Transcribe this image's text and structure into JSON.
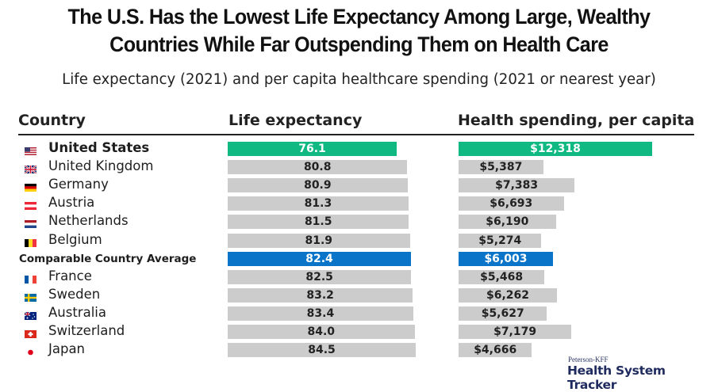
{
  "chart_data": {
    "type": "bar",
    "title": "The U.S. Has the Lowest Life Expectancy Among Large, Wealthy Countries While Far Outspending Them on Health Care",
    "subtitle": "Life expectancy (2021) and per capita healthcare spending (2021 or nearest year)",
    "orientation": "horizontal",
    "column_headers": {
      "country": "Country",
      "life_expectancy": "Life expectancy",
      "spending": "Health spending, per capita"
    },
    "categories": [
      "United States",
      "United Kingdom",
      "Germany",
      "Austria",
      "Netherlands",
      "Belgium",
      "Comparable Country Average",
      "France",
      "Sweden",
      "Australia",
      "Switzerland",
      "Japan"
    ],
    "flags": [
      "us-flag",
      "uk-flag",
      "germany-flag",
      "austria-flag",
      "netherlands-flag",
      "belgium-flag",
      null,
      "france-flag",
      "sweden-flag",
      "australia-flag",
      "switzerland-flag",
      "japan-flag"
    ],
    "series": [
      {
        "name": "Life expectancy",
        "values": [
          76.1,
          80.8,
          80.9,
          81.3,
          81.5,
          81.9,
          82.4,
          82.5,
          83.2,
          83.4,
          84.0,
          84.5
        ],
        "labels": [
          "76.1",
          "80.8",
          "80.9",
          "81.3",
          "81.5",
          "81.9",
          "82.4",
          "82.5",
          "83.2",
          "83.4",
          "84.0",
          "84.5"
        ]
      },
      {
        "name": "Health spending, per capita",
        "values": [
          12318,
          5387,
          7383,
          6693,
          6190,
          5274,
          6003,
          5468,
          6262,
          5627,
          7179,
          4666
        ],
        "labels": [
          "$12,318",
          "$5,387",
          "$7,383",
          "$6,693",
          "$6,190",
          "$5,274",
          "$6,003",
          "$5,468",
          "$6,262",
          "$5,627",
          "$7,179",
          "$4,666"
        ]
      }
    ],
    "highlight": {
      "United States": "#10b981",
      "Comparable Country Average": "#0a74c9"
    },
    "default_bar_color": "#cccccc",
    "grid": false,
    "legend": "none"
  },
  "colors": {
    "us": "#10b981",
    "average": "#0a74c9",
    "other": "#cccccc"
  },
  "branding": {
    "small": "Peterson-KFF",
    "big": "Health System Tracker"
  }
}
